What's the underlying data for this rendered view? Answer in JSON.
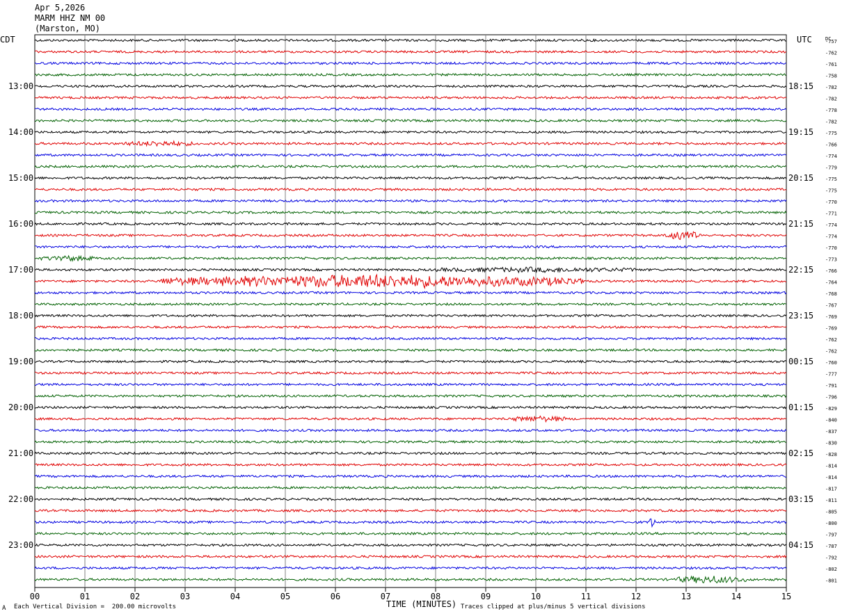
{
  "header": {
    "date": "Apr 5,2026",
    "station": "MARM HHZ NM 00",
    "location": "(Marston, MO)"
  },
  "left_tz": "CDT",
  "right_tz": "UTC",
  "dc_label": "DC",
  "footer": {
    "division": "Each Vertical Division =  200.00 microvolts",
    "clipped": "Traces clipped at plus/minus 5 vertical divisions",
    "corner_mark": "A"
  },
  "colors": [
    "#000000",
    "#e00000",
    "#0000e0",
    "#006000"
  ],
  "chart_data": {
    "type": "line",
    "xlabel": "TIME (MINUTES)",
    "x_ticks": [
      "00",
      "01",
      "02",
      "03",
      "04",
      "05",
      "06",
      "07",
      "08",
      "09",
      "10",
      "11",
      "12",
      "13",
      "14",
      "15"
    ],
    "xlim": [
      0,
      15
    ],
    "left_hour_labels": [
      "13:00",
      "14:00",
      "15:00",
      "16:00",
      "17:00",
      "18:00",
      "19:00",
      "20:00",
      "21:00",
      "22:00",
      "23:00"
    ],
    "right_hour_labels": [
      "18:15",
      "19:15",
      "20:15",
      "21:15",
      "22:15",
      "23:15",
      "00:15",
      "01:15",
      "02:15",
      "03:15",
      "04:15"
    ],
    "dc_offsets": [
      -757,
      -762,
      -761,
      -758,
      -782,
      -782,
      -778,
      -782,
      -775,
      -766,
      -774,
      -779,
      -775,
      -775,
      -770,
      -771,
      -774,
      -774,
      -770,
      -773,
      -766,
      -764,
      -768,
      -767,
      -769,
      -769,
      -762,
      -762,
      -760,
      -777,
      -791,
      -796,
      -829,
      -840,
      -837,
      -830,
      -828,
      -814,
      -814,
      -817,
      -811,
      -805,
      -800,
      -797,
      -787,
      -792,
      -802,
      -801
    ],
    "trace_count": 48,
    "bursts": [
      {
        "trace": 21,
        "start": 2.5,
        "end": 11.0,
        "amp": 5.0
      },
      {
        "trace": 17,
        "start": 12.6,
        "end": 13.3,
        "amp": 3.0
      },
      {
        "trace": 42,
        "start": 12.2,
        "end": 12.4,
        "amp": 4.5
      },
      {
        "trace": 47,
        "start": 12.8,
        "end": 14.2,
        "amp": 2.6
      },
      {
        "trace": 33,
        "start": 9.5,
        "end": 10.6,
        "amp": 1.8
      },
      {
        "trace": 9,
        "start": 1.8,
        "end": 3.2,
        "amp": 1.6
      },
      {
        "trace": 19,
        "start": 0.1,
        "end": 1.2,
        "amp": 1.5
      },
      {
        "trace": 20,
        "start": 8.0,
        "end": 12.0,
        "amp": 1.4
      }
    ]
  }
}
